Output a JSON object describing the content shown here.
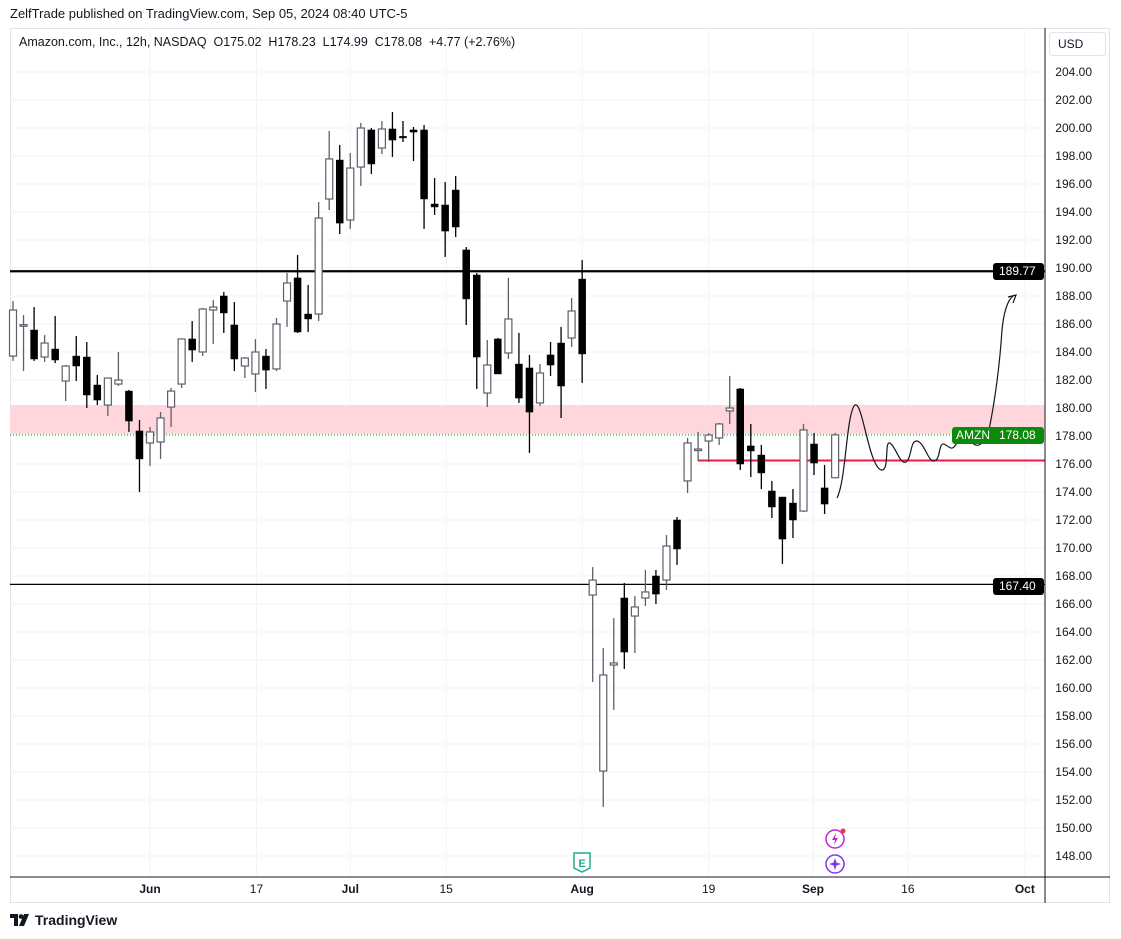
{
  "header": {
    "publisher_line": "ZelfTrade published on TradingView.com, Sep 05, 2024 08:40 UTC-5",
    "legend": "Amazon.com, Inc., 12h, NASDAQ  O175.02  H178.23  L174.99  C178.08  +4.77 (+2.76%)",
    "currency_button": "USD"
  },
  "footer": {
    "brand": "TradingView"
  },
  "colors": {
    "up_body": "#ffffff",
    "up_border": "#5d606b",
    "down": "#000000",
    "zone": "#ffd6dc",
    "last_price": "#0b8a0b",
    "support_red": "#f0164a",
    "level_line": "#000000"
  },
  "icons": [
    "earnings-e-icon",
    "flash-alert-icon",
    "sparkle-event-icon",
    "tradingview-logo-icon"
  ],
  "chart_data": {
    "type": "candlestick",
    "title": "Amazon.com, Inc., 12h, NASDAQ",
    "symbol": "AMZN",
    "ylim": [
      147,
      205
    ],
    "y_ticks": [
      "148.00",
      "150.00",
      "152.00",
      "154.00",
      "156.00",
      "158.00",
      "160.00",
      "162.00",
      "164.00",
      "166.00",
      "168.00",
      "170.00",
      "172.00",
      "174.00",
      "176.00",
      "178.00",
      "180.00",
      "182.00",
      "184.00",
      "186.00",
      "188.00",
      "190.00",
      "192.00",
      "194.00",
      "196.00",
      "198.00",
      "200.00",
      "202.00",
      "204.00"
    ],
    "x_ticks": [
      {
        "label": "Jun",
        "bar": 13.0
      },
      {
        "label": "17",
        "bar": 23.1
      },
      {
        "label": "Jul",
        "bar": 32.0
      },
      {
        "label": "15",
        "bar": 41.1
      },
      {
        "label": "Aug",
        "bar": 54.0
      },
      {
        "label": "19",
        "bar": 66.0
      },
      {
        "label": "Sep",
        "bar": 75.9
      },
      {
        "label": "16",
        "bar": 84.9
      },
      {
        "label": "Oct",
        "bar": 96.0
      }
    ],
    "candles": [
      [
        183.71,
        187.64,
        183.36,
        187.0
      ],
      [
        185.9,
        186.64,
        182.64,
        185.95
      ],
      [
        185.57,
        187.21,
        183.36,
        183.5
      ],
      [
        183.64,
        185.21,
        183.29,
        184.64
      ],
      [
        184.21,
        186.57,
        183.21,
        183.43
      ],
      [
        181.93,
        183.07,
        180.5,
        183.0
      ],
      [
        183.71,
        185.14,
        181.93,
        183.0
      ],
      [
        183.64,
        184.71,
        180.0,
        180.93
      ],
      [
        181.64,
        182.36,
        180.21,
        180.57
      ],
      [
        180.21,
        182.14,
        179.43,
        182.14
      ],
      [
        181.71,
        184.0,
        181.57,
        182.0
      ],
      [
        181.21,
        181.29,
        178.29,
        179.07
      ],
      [
        178.36,
        179.14,
        174.0,
        176.36
      ],
      [
        177.5,
        178.64,
        175.86,
        178.29
      ],
      [
        177.57,
        179.71,
        176.36,
        179.29
      ],
      [
        180.07,
        181.43,
        178.64,
        181.21
      ],
      [
        181.71,
        184.93,
        181.43,
        184.93
      ],
      [
        184.93,
        186.21,
        183.29,
        184.14
      ],
      [
        184.0,
        187.14,
        183.71,
        187.07
      ],
      [
        187.0,
        187.71,
        184.57,
        187.21
      ],
      [
        188.0,
        188.29,
        185.36,
        186.79
      ],
      [
        185.93,
        187.57,
        182.64,
        183.5
      ],
      [
        183.0,
        183.64,
        182.14,
        183.57
      ],
      [
        182.43,
        184.93,
        181.14,
        184.0
      ],
      [
        183.71,
        184.21,
        181.36,
        182.71
      ],
      [
        182.79,
        186.43,
        182.64,
        186.0
      ],
      [
        187.64,
        189.64,
        185.79,
        188.93
      ],
      [
        189.29,
        190.93,
        185.36,
        185.43
      ],
      [
        186.71,
        188.79,
        185.43,
        186.36
      ],
      [
        186.71,
        194.71,
        186.21,
        193.57
      ],
      [
        194.93,
        199.79,
        194.14,
        197.79
      ],
      [
        197.71,
        198.79,
        192.43,
        193.21
      ],
      [
        193.43,
        198.21,
        192.79,
        197.14
      ],
      [
        197.21,
        200.36,
        195.86,
        200.0
      ],
      [
        199.86,
        200.0,
        196.71,
        197.43
      ],
      [
        198.57,
        200.5,
        198.14,
        199.93
      ],
      [
        199.93,
        201.14,
        197.93,
        199.14
      ],
      [
        199.4,
        200.5,
        199.0,
        199.33
      ],
      [
        199.86,
        200.07,
        197.64,
        199.71
      ],
      [
        199.86,
        200.21,
        192.79,
        194.93
      ],
      [
        194.57,
        196.43,
        193.79,
        194.36
      ],
      [
        194.5,
        196.14,
        190.79,
        192.64
      ],
      [
        195.57,
        196.57,
        192.21,
        192.93
      ],
      [
        191.29,
        191.5,
        185.93,
        187.79
      ],
      [
        189.5,
        189.64,
        181.36,
        183.64
      ],
      [
        181.07,
        184.86,
        180.07,
        183.07
      ],
      [
        184.93,
        185.0,
        182.43,
        182.43
      ],
      [
        183.93,
        189.29,
        183.5,
        186.36
      ],
      [
        183.14,
        185.36,
        180.36,
        180.71
      ],
      [
        182.86,
        183.79,
        176.79,
        179.71
      ],
      [
        180.36,
        183.14,
        180.14,
        182.5
      ],
      [
        183.79,
        184.71,
        182.29,
        183.07
      ],
      [
        184.64,
        185.79,
        179.29,
        181.57
      ],
      [
        185.0,
        187.86,
        184.36,
        186.93
      ],
      [
        189.21,
        190.57,
        181.79,
        183.86
      ],
      [
        166.64,
        168.64,
        160.43,
        167.71
      ],
      [
        154.07,
        162.86,
        151.5,
        160.93
      ],
      [
        161.64,
        165.0,
        158.43,
        161.79
      ],
      [
        166.43,
        167.5,
        161.36,
        162.57
      ],
      [
        165.14,
        166.57,
        162.5,
        165.79
      ],
      [
        166.43,
        168.43,
        165.86,
        166.86
      ],
      [
        168.0,
        168.43,
        166.0,
        166.71
      ],
      [
        167.71,
        170.93,
        167.0,
        170.14
      ],
      [
        172.0,
        172.21,
        168.79,
        169.93
      ],
      [
        174.79,
        177.86,
        173.93,
        177.5
      ],
      [
        177.05,
        178.29,
        176.21,
        177.07
      ],
      [
        177.64,
        178.21,
        176.14,
        178.07
      ],
      [
        177.86,
        178.93,
        177.36,
        178.86
      ],
      [
        179.79,
        182.29,
        178.86,
        180.0
      ],
      [
        181.36,
        181.43,
        175.57,
        176.0
      ],
      [
        177.29,
        178.86,
        175.07,
        176.93
      ],
      [
        176.64,
        177.36,
        174.21,
        175.36
      ],
      [
        174.07,
        174.79,
        172.14,
        172.93
      ],
      [
        173.64,
        173.64,
        168.86,
        170.64
      ],
      [
        173.21,
        174.21,
        170.71,
        172.0
      ],
      [
        172.64,
        178.86,
        172.57,
        178.43
      ],
      [
        177.43,
        178.21,
        175.21,
        176.07
      ],
      [
        174.29,
        175.93,
        172.43,
        173.14
      ],
      [
        175.02,
        178.23,
        174.99,
        178.08
      ]
    ],
    "candle_format": [
      "open",
      "high",
      "low",
      "close"
    ],
    "horizontal_levels": [
      {
        "price": 189.77,
        "label": "189.77",
        "style": "thick"
      },
      {
        "price": 167.4,
        "label": "167.40",
        "style": "thin"
      }
    ],
    "support_line": {
      "price": 176.25,
      "from_bar": 65
    },
    "zone": {
      "low": 178.14,
      "high": 180.21
    },
    "last_price": {
      "symbol": "AMZN",
      "value": "178.08",
      "price": 178.08
    }
  }
}
